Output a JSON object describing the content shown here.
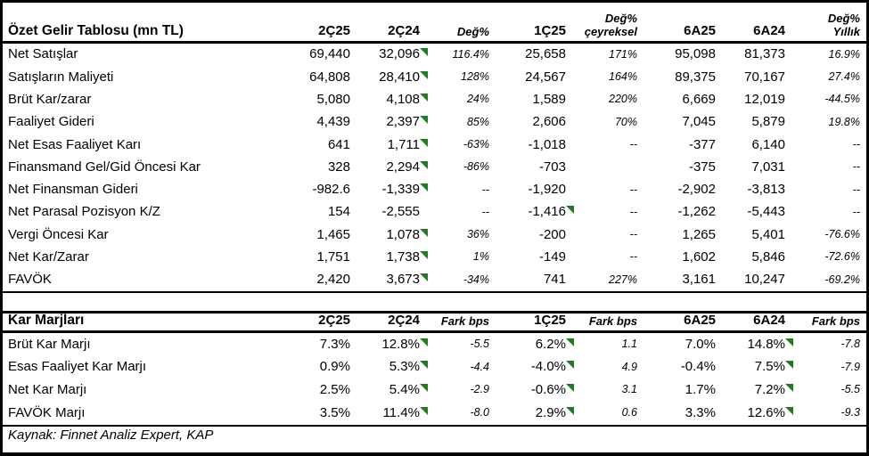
{
  "colors": {
    "text": "#000000",
    "background": "#ffffff",
    "border": "#000000",
    "flag_green": "#1e7d1e"
  },
  "income_table": {
    "title": "Özet Gelir Tablosu (mn TL)",
    "headers": [
      {
        "t": "2Ç25"
      },
      {
        "t": "2Ç24"
      },
      {
        "t": "Değ%",
        "italic": true
      },
      {
        "t": "1Ç25"
      },
      {
        "t": "Değ%",
        "t2": "çeyreksel",
        "italic": true
      },
      {
        "t": "6A25"
      },
      {
        "t": "6A24"
      },
      {
        "t": "Değ%",
        "t2": "Yıllık",
        "italic": true
      }
    ],
    "italic_value_cols": [
      2,
      4,
      7
    ],
    "rows": [
      {
        "label": "Net Satışlar",
        "cells": [
          "69,440",
          {
            "v": "32,096",
            "flag": true
          },
          "116.4%",
          "25,658",
          "171%",
          "95,098",
          "81,373",
          "16.9%"
        ]
      },
      {
        "label": "Satışların Maliyeti",
        "cells": [
          "64,808",
          {
            "v": "28,410",
            "flag": true
          },
          "128%",
          "24,567",
          "164%",
          "89,375",
          "70,167",
          "27.4%"
        ]
      },
      {
        "label": "Brüt Kar/zarar",
        "cells": [
          "5,080",
          {
            "v": "4,108",
            "flag": true
          },
          "24%",
          "1,589",
          "220%",
          "6,669",
          "12,019",
          "-44.5%"
        ]
      },
      {
        "label": "Faaliyet Gideri",
        "cells": [
          "4,439",
          {
            "v": "2,397",
            "flag": true
          },
          "85%",
          "2,606",
          "70%",
          "7,045",
          "5,879",
          "19.8%"
        ]
      },
      {
        "label": "Net Esas Faaliyet Karı",
        "cells": [
          "641",
          {
            "v": "1,711",
            "flag": true
          },
          "-63%",
          "-1,018",
          "--",
          "-377",
          "6,140",
          "--"
        ]
      },
      {
        "label": "Finansmand Gel/Gid Öncesi Kar",
        "cells": [
          "328",
          {
            "v": "2,294",
            "flag": true
          },
          "-86%",
          "-703",
          "",
          "-375",
          "7,031",
          "--"
        ]
      },
      {
        "label": "Net Finansman Gideri",
        "cells": [
          "-982.6",
          {
            "v": "-1,339",
            "flag": true
          },
          "--",
          "-1,920",
          "--",
          "-2,902",
          "-3,813",
          "--"
        ]
      },
      {
        "label": "Net Parasal Pozisyon K/Z",
        "cells": [
          "154",
          "-2,555",
          "--",
          {
            "v": "-1,416",
            "flag": true
          },
          "--",
          "-1,262",
          "-5,443",
          "--"
        ]
      },
      {
        "label": "Vergi Öncesi Kar",
        "cells": [
          "1,465",
          {
            "v": "1,078",
            "flag": true
          },
          "36%",
          "-200",
          "--",
          "1,265",
          "5,401",
          "-76.6%"
        ]
      },
      {
        "label": "Net Kar/Zarar",
        "cells": [
          "1,751",
          {
            "v": "1,738",
            "flag": true
          },
          "1%",
          "-149",
          "--",
          "1,602",
          "5,846",
          "-72.6%"
        ]
      },
      {
        "label": "FAVÖK",
        "cells": [
          "2,420",
          {
            "v": "3,673",
            "flag": true
          },
          "-34%",
          "741",
          "227%",
          "3,161",
          "10,247",
          "-69.2%"
        ]
      }
    ]
  },
  "margin_table": {
    "title": "Kar Marjları",
    "headers": [
      {
        "t": "2Ç25"
      },
      {
        "t": "2Ç24"
      },
      {
        "t": "Fark bps",
        "italic": true
      },
      {
        "t": "1Ç25"
      },
      {
        "t": "Fark bps",
        "italic": true
      },
      {
        "t": "6A25"
      },
      {
        "t": "6A24"
      },
      {
        "t": "Fark bps",
        "italic": true
      }
    ],
    "italic_value_cols": [
      2,
      4,
      7
    ],
    "rows": [
      {
        "label": "Brüt Kar Marjı",
        "cells": [
          "7.3%",
          {
            "v": "12.8%",
            "flag": true
          },
          "-5.5",
          {
            "v": "6.2%",
            "flag": true
          },
          "1.1",
          "7.0%",
          {
            "v": "14.8%",
            "flag": true
          },
          "-7.8"
        ]
      },
      {
        "label": "Esas Faaliyet Kar Marjı",
        "cells": [
          "0.9%",
          {
            "v": "5.3%",
            "flag": true
          },
          "-4.4",
          {
            "v": "-4.0%",
            "flag": true
          },
          "4.9",
          "-0.4%",
          {
            "v": "7.5%",
            "flag": true
          },
          "-7.9"
        ]
      },
      {
        "label": "Net Kar Marjı",
        "cells": [
          "2.5%",
          {
            "v": "5.4%",
            "flag": true
          },
          "-2.9",
          {
            "v": "-0.6%",
            "flag": true
          },
          "3.1",
          "1.7%",
          {
            "v": "7.2%",
            "flag": true
          },
          "-5.5"
        ]
      },
      {
        "label": "FAVÖK Marjı",
        "cells": [
          "3.5%",
          {
            "v": "11.4%",
            "flag": true
          },
          "-8.0",
          {
            "v": "2.9%",
            "flag": true
          },
          "0.6",
          "3.3%",
          {
            "v": "12.6%",
            "flag": true
          },
          "-9.3"
        ]
      }
    ]
  },
  "footer": {
    "source": "Kaynak: Finnet Analiz Expert, KAP"
  }
}
